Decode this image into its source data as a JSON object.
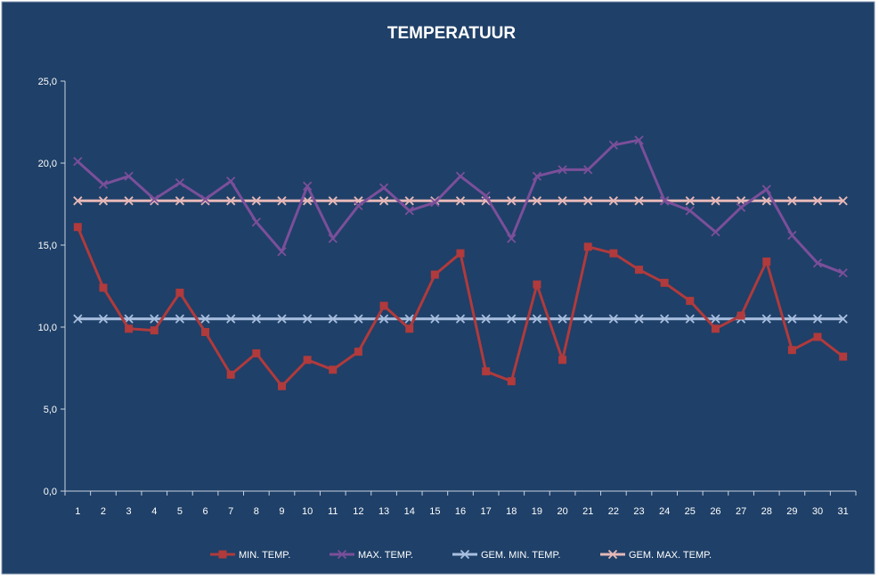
{
  "chart_data": {
    "type": "line",
    "title": "TEMPERATUUR",
    "xlabel": "",
    "ylabel": "",
    "categories": [
      "1",
      "2",
      "3",
      "4",
      "5",
      "6",
      "7",
      "8",
      "9",
      "10",
      "11",
      "12",
      "13",
      "14",
      "15",
      "16",
      "17",
      "18",
      "19",
      "20",
      "21",
      "22",
      "23",
      "24",
      "25",
      "26",
      "27",
      "28",
      "29",
      "30",
      "31"
    ],
    "ylim": [
      0,
      25
    ],
    "yticks": [
      "0,0",
      "5,0",
      "10,0",
      "15,0",
      "20,0",
      "25,0"
    ],
    "grid": false,
    "legend_position": "bottom",
    "series": [
      {
        "name": "MIN. TEMP.",
        "color": "#b03a3c",
        "marker": "square",
        "values": [
          16.1,
          12.4,
          9.9,
          9.8,
          12.1,
          9.7,
          7.1,
          8.4,
          6.4,
          8.0,
          7.4,
          8.5,
          11.3,
          9.9,
          13.2,
          14.5,
          7.3,
          6.7,
          12.6,
          8.0,
          14.9,
          14.5,
          13.5,
          12.7,
          11.6,
          9.9,
          10.7,
          14.0,
          8.6,
          9.4,
          8.2
        ]
      },
      {
        "name": "MAX. TEMP.",
        "color": "#7b4f9a",
        "marker": "x",
        "values": [
          20.1,
          18.7,
          19.2,
          17.8,
          18.8,
          17.8,
          18.9,
          16.4,
          14.6,
          18.6,
          15.4,
          17.4,
          18.5,
          17.1,
          17.6,
          19.2,
          18.0,
          15.4,
          19.2,
          19.6,
          19.6,
          21.1,
          21.4,
          17.7,
          17.1,
          15.8,
          17.3,
          18.4,
          15.6,
          13.9,
          13.3
        ]
      },
      {
        "name": "GEM. MIN. TEMP.",
        "color": "#a9bfe0",
        "marker": "x",
        "values": [
          10.5,
          10.5,
          10.5,
          10.5,
          10.5,
          10.5,
          10.5,
          10.5,
          10.5,
          10.5,
          10.5,
          10.5,
          10.5,
          10.5,
          10.5,
          10.5,
          10.5,
          10.5,
          10.5,
          10.5,
          10.5,
          10.5,
          10.5,
          10.5,
          10.5,
          10.5,
          10.5,
          10.5,
          10.5,
          10.5,
          10.5
        ]
      },
      {
        "name": "GEM. MAX. TEMP.",
        "color": "#e6b8b8",
        "marker": "x",
        "values": [
          17.7,
          17.7,
          17.7,
          17.7,
          17.7,
          17.7,
          17.7,
          17.7,
          17.7,
          17.7,
          17.7,
          17.7,
          17.7,
          17.7,
          17.7,
          17.7,
          17.7,
          17.7,
          17.7,
          17.7,
          17.7,
          17.7,
          17.7,
          17.7,
          17.7,
          17.7,
          17.7,
          17.7,
          17.7,
          17.7,
          17.7
        ]
      }
    ]
  },
  "colors": {
    "background": "#1f4068",
    "axis": "#c8d2e0",
    "text": "#ffffff"
  }
}
